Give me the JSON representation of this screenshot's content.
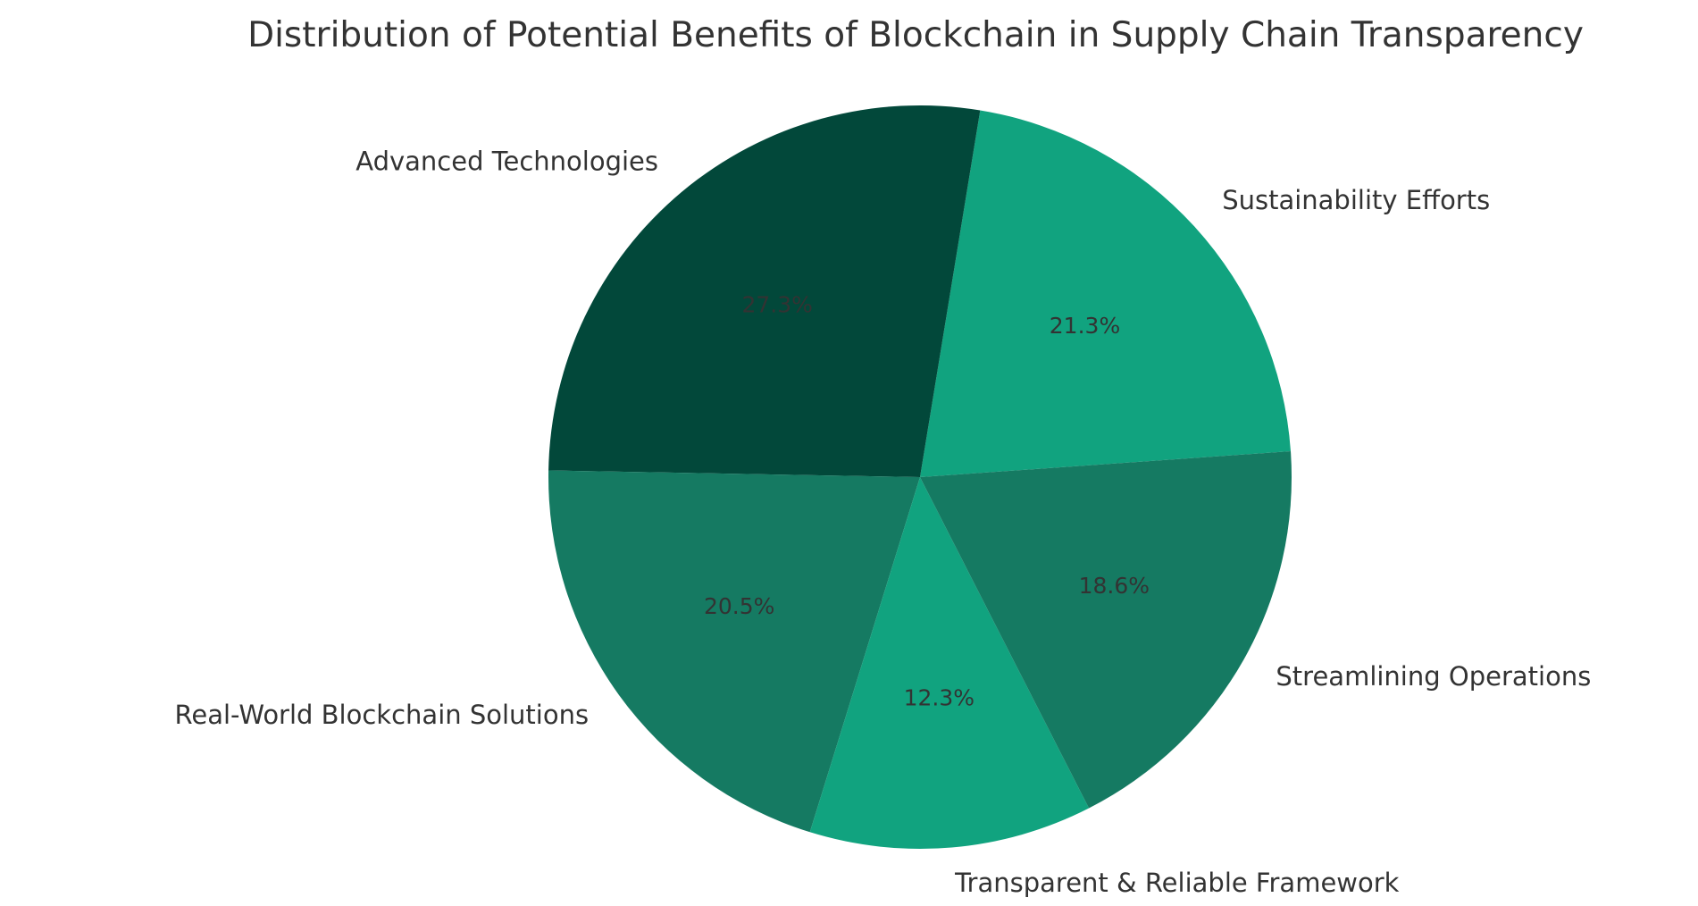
{
  "chart_data": {
    "type": "pie",
    "title": "Distribution of Potential Benefits of Blockchain in Supply Chain Transparency",
    "labels": [
      "Sustainability Efforts",
      "Advanced Technologies",
      "Real-World Blockchain Solutions",
      "Transparent & Reliable Framework",
      "Streamlining Operations"
    ],
    "values": [
      21.3,
      27.3,
      20.5,
      12.3,
      18.6
    ],
    "percent_labels": [
      "21.3%",
      "27.3%",
      "20.5%",
      "12.3%",
      "18.6%"
    ],
    "colors": [
      "#11a37f",
      "#02483a",
      "#157a62",
      "#11a37f",
      "#157a62"
    ],
    "legend": "none"
  }
}
